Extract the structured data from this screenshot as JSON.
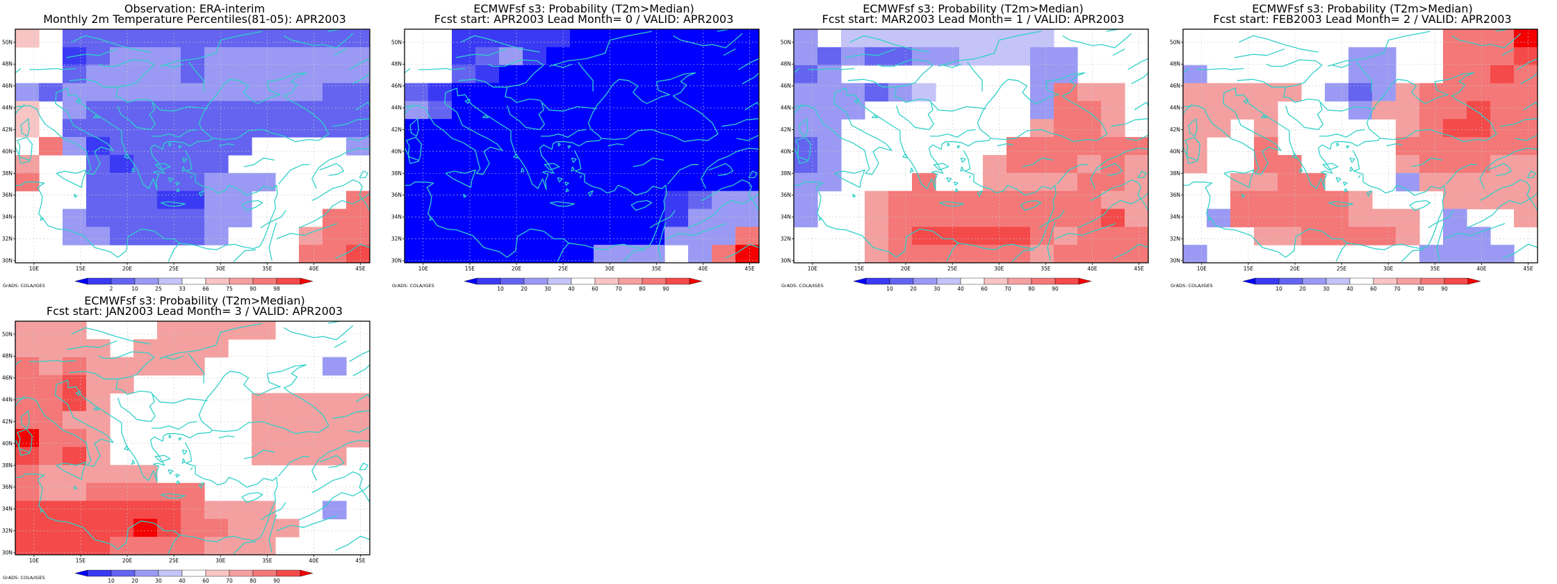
{
  "colors": {
    "b100": "#0000ff",
    "b80": "#3a3af4",
    "b60": "#6464f0",
    "b40": "#9a9af4",
    "b20": "#c4c4f8",
    "white": "#ffffff",
    "r20": "#f8c4c4",
    "r40": "#f4a0a0",
    "r60": "#f47878",
    "r80": "#f44a4a",
    "r100": "#f40000",
    "coast": "#30d0c8",
    "grid": "#c8c8c8",
    "frame": "#000000"
  },
  "lon_ticks": [
    "10E",
    "15E",
    "20E",
    "25E",
    "30E",
    "35E",
    "40E",
    "45E"
  ],
  "lat_ticks": [
    "30N",
    "32N",
    "34N",
    "36N",
    "38N",
    "40N",
    "42N",
    "44N",
    "46N",
    "48N",
    "50N"
  ],
  "credit": "GrADS: COLA/IGES",
  "panels": [
    {
      "title1": "Observation: ERA-interim",
      "title2": "Monthly 2m Temperature Percentiles(81-05): APR2003",
      "colorbar": [
        "2",
        "10",
        "25",
        "33",
        "66",
        "75",
        "90",
        "98"
      ],
      "grid": [
        "r20,w,b60,b60,b60,b60,b60,b60,b60,b60,b60,b60,b60,b60,b60",
        "w,w,b80,b60,b40,b40,b40,b60,b40,b40,b40,b40,b40,b40,b40",
        "w,w,b60,b40,b40,b40,b40,b60,b40,b40,b40,b40,b40,b40,b40",
        "b40,b60,b40,b40,b40,b40,b40,b40,b40,b40,b40,b40,b40,b60,b60",
        "r20,w,b40,b60,b60,b60,b60,b60,b60,b60,b60,b60,b60,b60,b60",
        "r20,w,b60,b60,b60,b60,b60,b60,b60,b60,b60,b60,b60,b60,b60",
        "w,r60,b40,b80,b60,b60,b60,b60,b60,b60,w,w,w,w,b40",
        "r40,w,w,b60,b80,b60,b60,b60,b60,w,w,w,w,w,w",
        "r60,w,w,b60,b60,b60,b60,b60,b40,b40,b40,w,w,w,w",
        "w,w,w,b60,b60,b60,b80,b80,b40,b40,w,w,w,w,r60",
        "w,w,b40,b60,b60,b60,b60,b60,b40,b40,w,w,w,r60,r60",
        "w,w,b40,b40,b60,b60,b60,b60,b40,w,w,w,r40,r60,r60",
        "w,w,w,w,w,w,w,w,w,w,w,w,r60,r60,r80"
      ]
    },
    {
      "title1": "ECMWFsf s3: Probability (T2m>Median)",
      "title2": "Fcst start: APR2003   Lead Month= 0 / VALID: APR2003",
      "colorbar": [
        "10",
        "20",
        "30",
        "40",
        "60",
        "70",
        "80",
        "90"
      ],
      "grid": [
        "w,w,b80,b80,b80,b80,b80,b100,b100,b100,b100,b100,b100,b100,b100",
        "w,w,b80,b60,b40,b80,b100,b100,b100,b100,b100,b100,b100,b100,b100",
        "w,w,b60,b80,b100,b100,b100,b100,b100,b100,b100,b100,b100,b100,b100",
        "b60,b80,b100,b100,b100,b100,b100,b100,b100,b100,b100,b100,b100,b100,b100",
        "b40,b60,b100,b100,b100,b100,b100,b100,b100,b100,b100,b100,b100,b100,b100",
        "b100,b100,b100,b100,b100,b100,b100,b100,b100,b100,b100,b100,b100,b100,b100",
        "b100,b100,b100,b100,b100,b100,b100,b100,b100,b100,b100,b100,b100,b100,b100",
        "b100,b100,b100,b100,b100,b100,b100,b100,b100,b100,b100,b100,b100,b100,b100",
        "b100,b100,b100,b100,b100,b100,b100,b100,b100,b100,b100,b100,b100,b100,b100",
        "b100,b100,b100,b100,b100,b100,b100,b100,b100,b100,b100,b80,b60,b40,b40",
        "b100,b100,b100,b100,b100,b100,b100,b100,b100,b100,b100,b80,b40,b40,b40",
        "b100,b100,b100,b100,b100,b100,b100,b100,b100,b100,b100,b40,b40,b40,r60",
        "b100,b100,b100,b100,b100,b100,b100,b100,b40,b40,b40,w,b40,r60,r100"
      ]
    },
    {
      "title1": "ECMWFsf s3: Probability (T2m>Median)",
      "title2": "Fcst start: MAR2003   Lead Month= 1 / VALID: APR2003",
      "colorbar": [
        "10",
        "20",
        "30",
        "40",
        "60",
        "70",
        "80",
        "90"
      ],
      "grid": [
        "b40,w,b20,b20,b20,b20,b20,b20,b20,b20,b20,w,w,w,w",
        "b40,b60,b40,b60,b60,b40,b40,b20,b20,b20,b40,b40,w,w,w",
        "b60,b40,w,w,w,w,w,w,w,w,b40,b40,w,w,w",
        "b40,b40,b40,b60,b40,b20,w,w,w,w,b40,r60,r40,r40,w",
        "b40,b40,b40,w,w,w,w,w,w,w,b40,r60,r60,r40,w",
        "b40,b40,w,w,w,w,w,w,w,w,r40,r60,r60,r40,w",
        "b60,b40,w,w,w,w,w,w,w,r60,r60,r60,r60,r60,r60",
        "b60,b40,w,w,w,w,w,w,r40,r60,r60,r60,r40,r60,r40",
        "b40,b40,w,w,w,r60,w,w,r40,r40,r40,r40,r60,r60,r40",
        "b40,w,w,r40,r60,r60,r60,r60,r60,r60,r60,r60,r60,r40,r40",
        "b40,w,w,r40,r60,r60,r60,r60,r60,r60,r60,r60,r60,r80,r40",
        "w,w,w,r40,r60,r80,r80,r80,r80,r80,r60,r40,r60,r60,r60",
        "w,w,w,r40,r60,r60,r60,r60,r60,r60,r40,r60,r60,r60,r60"
      ]
    },
    {
      "title1": "ECMWFsf s3: Probability (T2m>Median)",
      "title2": "Fcst start: FEB2003   Lead Month= 2 / VALID: APR2003",
      "colorbar": [
        "10",
        "20",
        "30",
        "40",
        "60",
        "70",
        "80",
        "90"
      ],
      "grid": [
        "w,w,w,w,w,w,w,w,w,w,w,r60,r60,r60,r100",
        "w,w,w,w,w,w,w,b40,b40,w,w,r60,r60,r60,r80",
        "b40,w,w,w,w,w,w,b40,b40,w,w,r60,r60,r80,r60",
        "r40,r40,r40,r40,r40,w,b40,b60,b40,r40,r60,r60,r60,r60,r60",
        "r40,r40,r40,r40,w,w,w,b40,r40,r40,r60,r60,r80,r60,r60",
        "r40,r40,w,r40,w,w,w,w,w,r40,r60,r80,r80,r60,r60",
        "r40,w,w,r60,w,w,w,w,w,r60,r60,r60,r60,r60,r60",
        "r40,w,w,r60,r60,w,w,w,w,r40,r60,r60,r60,r40,r40",
        "w,w,r40,r40,r60,r60,w,w,w,b40,r40,r40,r40,r40,r40",
        "w,w,r60,r60,r60,r60,r60,r40,w,w,w,r40,r40,r40,r40",
        "w,b40,r60,r60,r60,r60,r60,r40,r40,r40,w,b40,w,w,r40",
        "w,w,w,r40,r40,r60,r60,r60,r60,r40,w,b40,b40,w,w",
        "b40,w,w,w,w,w,w,w,w,w,b40,b40,b40,b40,w"
      ]
    },
    {
      "title1": "ECMWFsf s3: Probability (T2m>Median)",
      "title2": "Fcst start: JAN2003   Lead Month= 3 / VALID: APR2003",
      "colorbar": [
        "10",
        "20",
        "30",
        "40",
        "60",
        "70",
        "80",
        "90"
      ],
      "grid": [
        "r40,r40,r40,w,w,w,r40,r40,r40,r40,r40,w,w,w,w",
        "r40,r40,r40,r40,w,r40,r40,r40,r40,w,w,w,w,w,w",
        "r60,r40,r60,r40,r40,r40,r40,r40,w,w,w,w,w,b40,w",
        "r60,r60,r80,r40,r40,w,w,w,w,w,w,w,w,w,w",
        "r60,r60,r80,r40,w,w,w,w,w,w,r40,r40,r40,r40,r40",
        "r60,r60,r40,r40,w,w,w,w,w,w,r40,r40,r40,r40,r40",
        "r100,r60,r60,r40,w,w,w,w,w,w,r40,r40,r40,r40,r40",
        "r80,r60,r80,r40,w,w,w,w,w,w,r40,r40,r40,r40,w",
        "r60,r40,r40,r40,r40,r40,w,w,w,w,w,w,w,w,w",
        "r60,r40,r40,r60,r60,r60,r60,r60,w,w,w,w,w,w,w",
        "r80,r80,r80,r80,r80,r80,r80,r60,r40,r40,r40,w,w,b40,w",
        "r80,r80,r80,r80,r80,r100,r80,r60,r60,r40,r40,r40,w,w,w",
        "r80,r80,r80,r80,r60,r60,r60,r60,r40,r40,r40,w,w,w,w"
      ]
    }
  ]
}
